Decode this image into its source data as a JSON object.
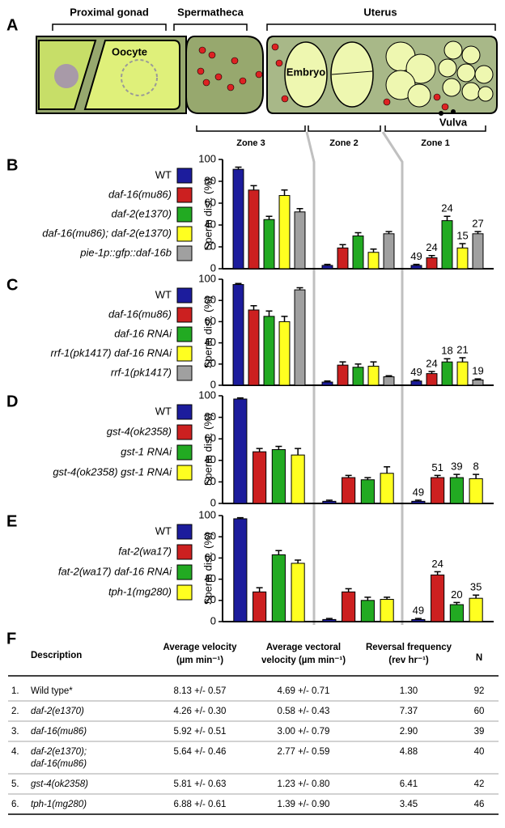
{
  "diagram": {
    "panel": "A",
    "regions": [
      "Proximal gonad",
      "Spermatheca",
      "Uterus"
    ],
    "oocyte": "Oocyte",
    "embryo": "Embryo",
    "vulva": "Vulva",
    "zones": [
      "Zone 3",
      "Zone 2",
      "Zone 1"
    ]
  },
  "chart_data": [
    {
      "type": "bar",
      "panel": "B",
      "y_label": "Sperm dist. (%)",
      "ylim": [
        0,
        100
      ],
      "yticks": [
        0,
        20,
        40,
        60,
        80,
        100
      ],
      "categories": [
        null,
        null,
        null
      ],
      "series": [
        {
          "name": "WT",
          "italic": false,
          "color": "#1c1c9c",
          "values": [
            91,
            3,
            3
          ],
          "errors": [
            2,
            1,
            1
          ],
          "n": 49
        },
        {
          "name": "daf-16(mu86)",
          "italic": true,
          "color": "#cc2020",
          "values": [
            72,
            19,
            10
          ],
          "errors": [
            4,
            3,
            2
          ],
          "n": 24
        },
        {
          "name": "daf-2(e1370)",
          "italic": true,
          "color": "#22aa22",
          "values": [
            45,
            30,
            44
          ],
          "errors": [
            3,
            3,
            4
          ],
          "n": 24
        },
        {
          "name": "daf-16(mu86); daf-2(e1370)",
          "italic": true,
          "color": "#ffff20",
          "values": [
            67,
            15,
            19
          ],
          "errors": [
            5,
            3,
            4
          ],
          "n": 15
        },
        {
          "name": "pie-1p::gfp::daf-16b",
          "italic": true,
          "color": "#a0a0a0",
          "values": [
            52,
            32,
            32
          ],
          "errors": [
            3,
            2,
            2
          ],
          "n": 27
        }
      ]
    },
    {
      "type": "bar",
      "panel": "C",
      "y_label": "Sperm dist. (%)",
      "ylim": [
        0,
        100
      ],
      "yticks": [
        0,
        20,
        40,
        60,
        80,
        100
      ],
      "categories": [
        null,
        null,
        null
      ],
      "series": [
        {
          "name": "WT",
          "italic": false,
          "color": "#1c1c9c",
          "values": [
            95,
            3,
            4
          ],
          "errors": [
            1,
            1,
            1
          ],
          "n": 49
        },
        {
          "name": "daf-16(mu86)",
          "italic": true,
          "color": "#cc2020",
          "values": [
            71,
            19,
            11
          ],
          "errors": [
            4,
            3,
            2
          ],
          "n": 24
        },
        {
          "name": "daf-16 RNAi",
          "italic": true,
          "color": "#22aa22",
          "values": [
            65,
            17,
            22
          ],
          "errors": [
            5,
            3,
            3
          ],
          "n": 18
        },
        {
          "name": "rrf-1(pk1417) daf-16 RNAi",
          "italic": true,
          "color": "#ffff20",
          "values": [
            60,
            18,
            22
          ],
          "errors": [
            5,
            4,
            4
          ],
          "n": 21
        },
        {
          "name": "rrf-1(pk1417)",
          "italic": true,
          "color": "#a0a0a0",
          "values": [
            90,
            8,
            5
          ],
          "errors": [
            2,
            1,
            1
          ],
          "n": 19
        }
      ]
    },
    {
      "type": "bar",
      "panel": "D",
      "y_label": "Sperm dist. (%)",
      "ylim": [
        0,
        100
      ],
      "yticks": [
        0,
        20,
        40,
        60,
        80,
        100
      ],
      "categories": [
        null,
        null,
        null
      ],
      "series": [
        {
          "name": "WT",
          "italic": false,
          "color": "#1c1c9c",
          "values": [
            97,
            2,
            2
          ],
          "errors": [
            1,
            1,
            1
          ],
          "n": 49
        },
        {
          "name": "gst-4(ok2358)",
          "italic": true,
          "color": "#cc2020",
          "values": [
            48,
            24,
            24
          ],
          "errors": [
            3,
            2,
            2
          ],
          "n": 51
        },
        {
          "name": "gst-1 RNAi",
          "italic": true,
          "color": "#22aa22",
          "values": [
            50,
            22,
            24
          ],
          "errors": [
            3,
            2,
            3
          ],
          "n": 39
        },
        {
          "name": "gst-4(ok2358) gst-1 RNAi",
          "italic": true,
          "color": "#ffff20",
          "values": [
            45,
            28,
            23
          ],
          "errors": [
            6,
            6,
            4
          ],
          "n": 8
        }
      ]
    },
    {
      "type": "bar",
      "panel": "E",
      "y_label": "Sperm dist. (%)",
      "ylim": [
        0,
        100
      ],
      "yticks": [
        0,
        20,
        40,
        60,
        80,
        100
      ],
      "categories": [
        null,
        null,
        null
      ],
      "series": [
        {
          "name": "WT",
          "italic": false,
          "color": "#1c1c9c",
          "values": [
            97,
            2,
            2
          ],
          "errors": [
            1,
            1,
            1
          ],
          "n": 49
        },
        {
          "name": "fat-2(wa17)",
          "italic": true,
          "color": "#cc2020",
          "values": [
            28,
            28,
            44
          ],
          "errors": [
            4,
            3,
            3
          ],
          "n": 24
        },
        {
          "name": "fat-2(wa17) daf-16 RNAi",
          "italic": true,
          "color": "#22aa22",
          "values": [
            63,
            20,
            16
          ],
          "errors": [
            4,
            3,
            2
          ],
          "n": 20
        },
        {
          "name": "tph-1(mg280)",
          "italic": true,
          "color": "#ffff20",
          "values": [
            55,
            21,
            22
          ],
          "errors": [
            3,
            2,
            3
          ],
          "n": 35
        }
      ]
    }
  ],
  "table": {
    "panel": "F",
    "header": {
      "description": "Description",
      "avg_velocity": [
        "Average velocity",
        "(µm min⁻¹)"
      ],
      "vectoral": [
        "Average vectoral",
        "velocity (µm min⁻¹)"
      ],
      "reversal": [
        "Reversal frequency",
        "(rev hr⁻¹)"
      ],
      "n": "N"
    },
    "rows": [
      [
        "1.",
        [
          "Wild type*"
        ],
        "8.13 +/- 0.57",
        "4.69 +/- 0.71",
        "1.30",
        "92"
      ],
      [
        "2.",
        [
          "daf-2(e1370)"
        ],
        "4.26 +/- 0.30",
        "0.58 +/- 0.43",
        "7.37",
        "60"
      ],
      [
        "3.",
        [
          "daf-16(mu86)"
        ],
        "5.92 +/- 0.51",
        "3.00 +/- 0.79",
        "2.90",
        "39"
      ],
      [
        "4.",
        [
          "daf-2(e1370);",
          "daf-16(mu86)"
        ],
        "5.64 +/- 0.46",
        "2.77 +/- 0.59",
        "4.88",
        "40"
      ],
      [
        "5.",
        [
          "gst-4(ok2358)"
        ],
        "5.81 +/- 0.63",
        "1.23 +/- 0.80",
        "6.41",
        "42"
      ],
      [
        "6.",
        [
          "tph-1(mg280)"
        ],
        "6.88 +/- 0.61",
        "1.39 +/- 0.90",
        "3.45",
        "46"
      ]
    ]
  }
}
